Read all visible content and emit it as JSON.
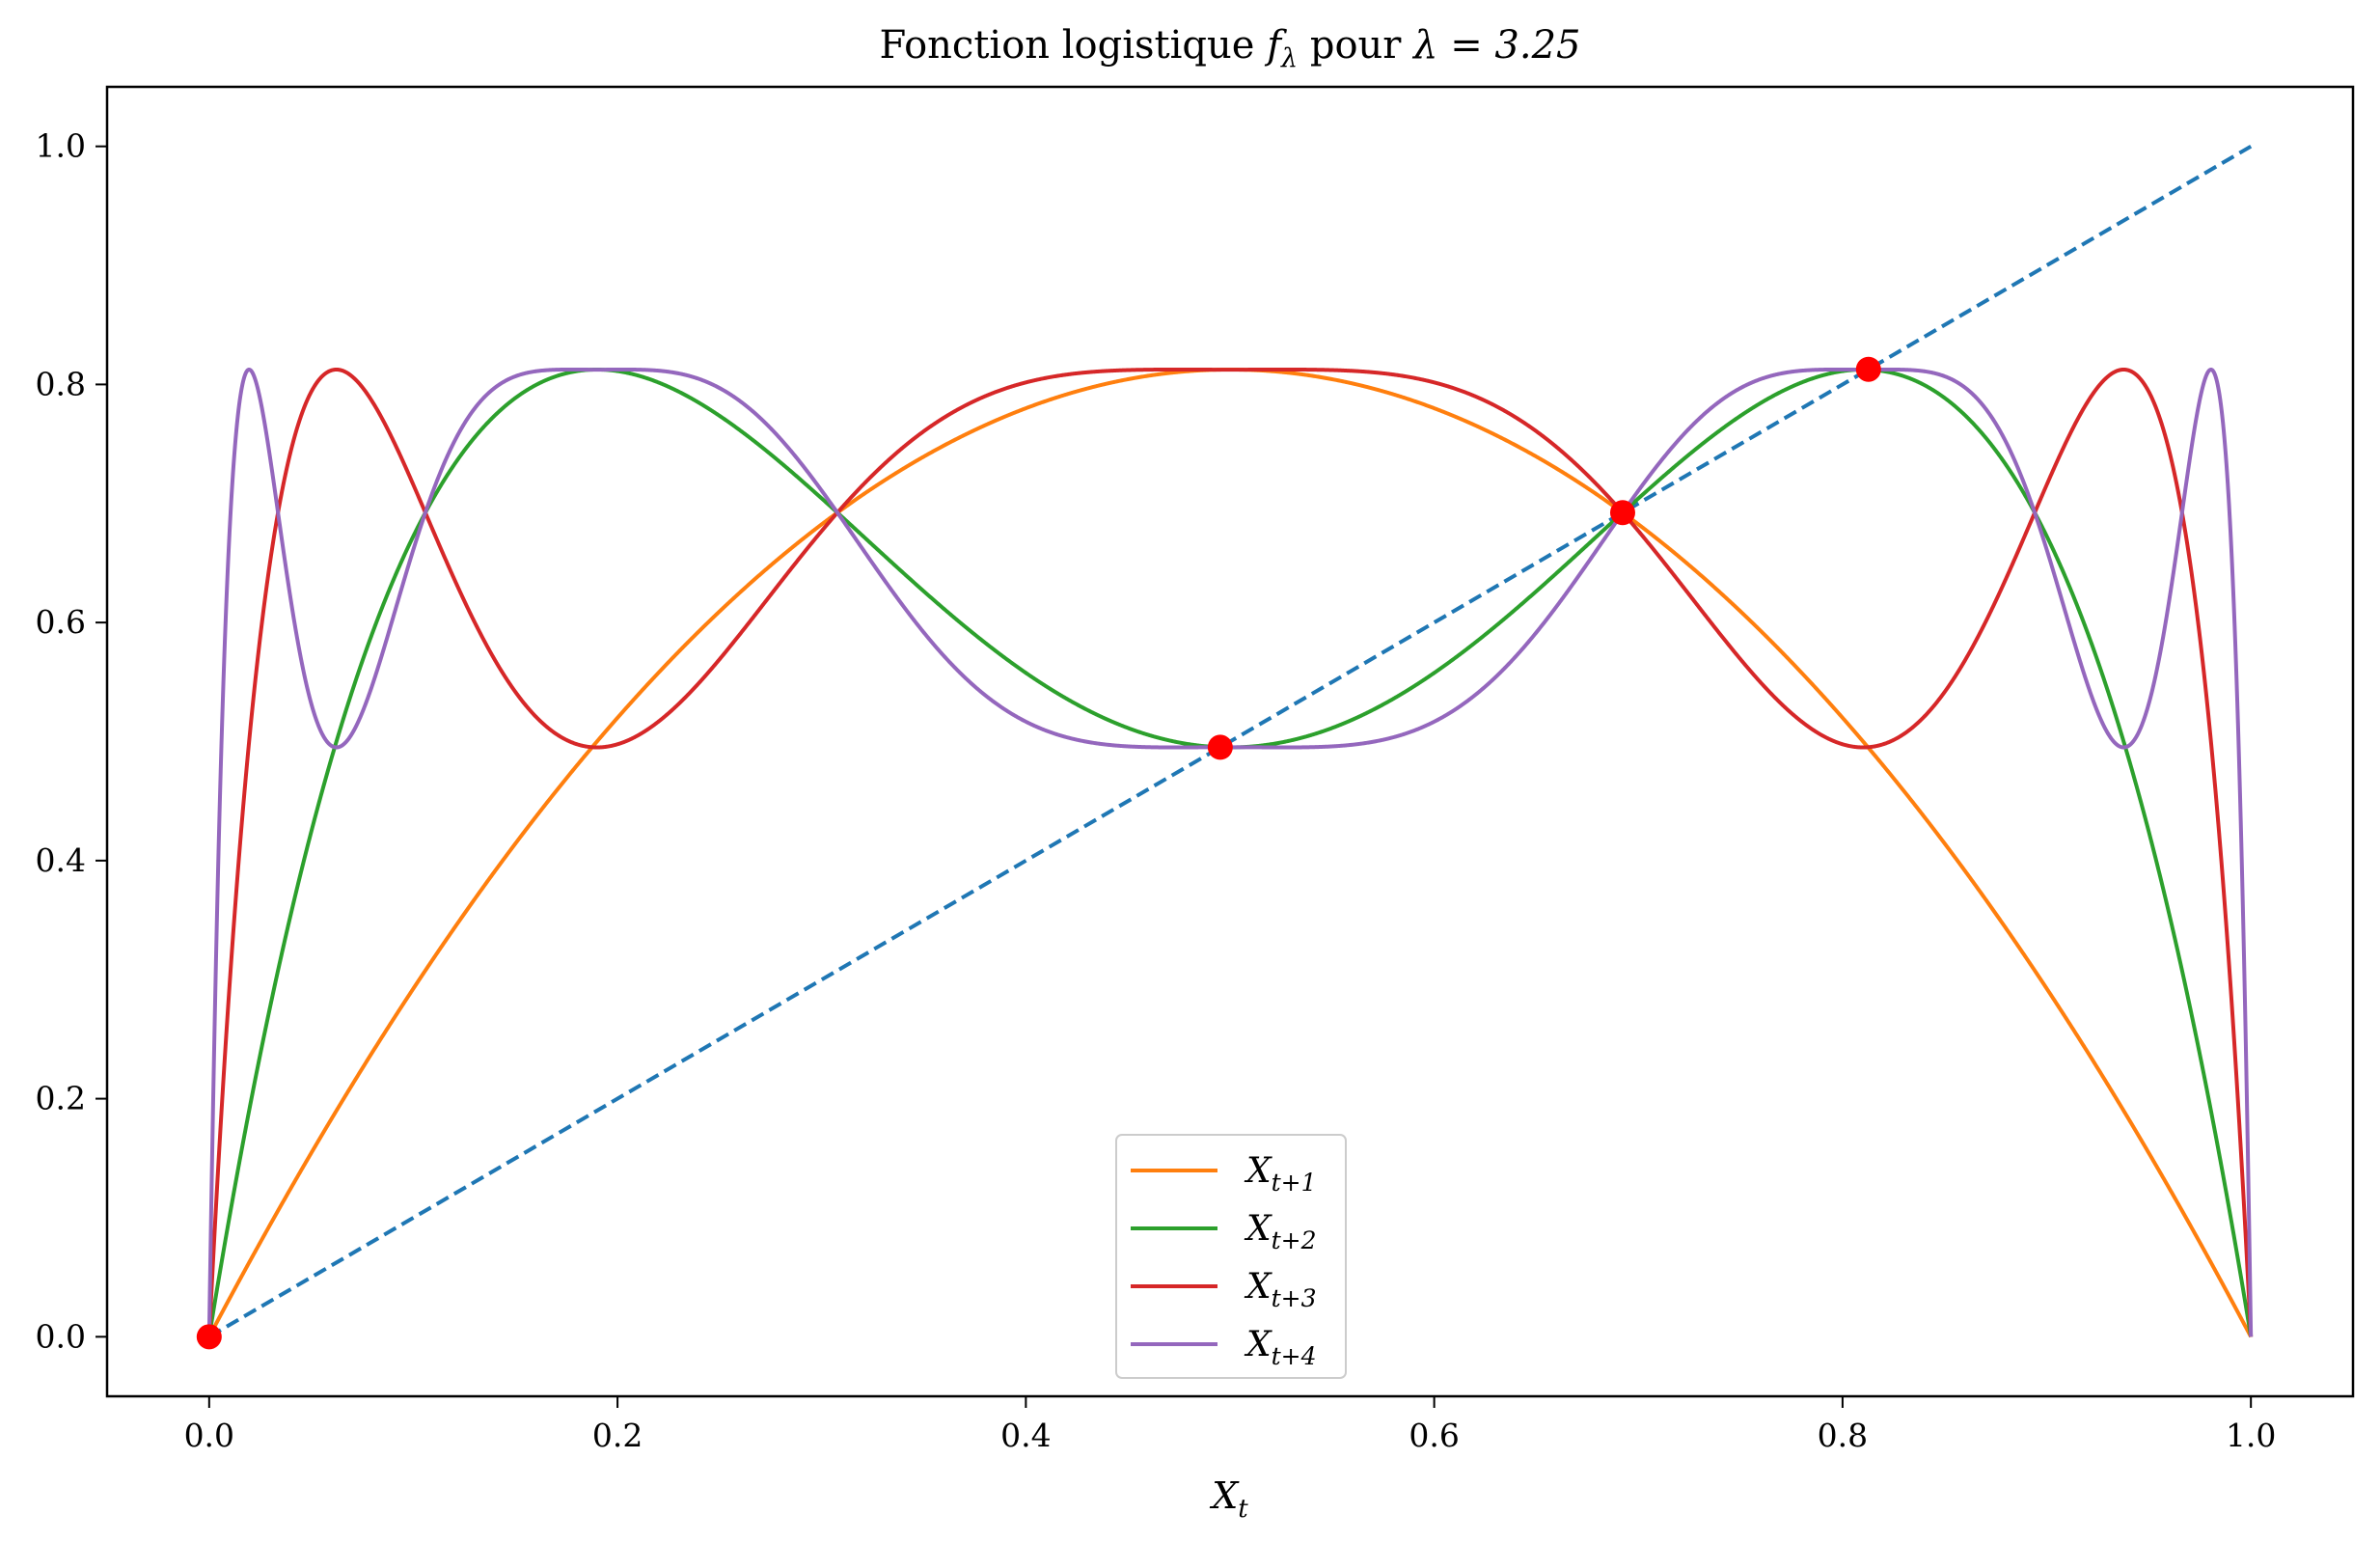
{
  "chart_data": {
    "type": "line",
    "title": "Fonction logistique f_λ pour λ = 3.25",
    "title_parts": {
      "prefix": "Fonction logistique ",
      "func": "f",
      "func_sub": "λ",
      "mid": " pour ",
      "eq": "λ = 3.25"
    },
    "xlabel": "X",
    "xlabel_sub": "t",
    "ylabel": "",
    "lambda": 3.25,
    "xlim": [
      -0.05,
      1.05
    ],
    "ylim": [
      -0.05,
      1.05
    ],
    "xticks": [
      "0.0",
      "0.2",
      "0.4",
      "0.6",
      "0.8",
      "1.0"
    ],
    "yticks": [
      "0.0",
      "0.2",
      "0.4",
      "0.6",
      "0.8",
      "1.0"
    ],
    "grid": false,
    "legend_position": "bottom-center",
    "series": [
      {
        "name": "X_{t+1}",
        "label_main": "X",
        "label_sub": "t+1",
        "iterations": 1,
        "color": "#ff7f0e"
      },
      {
        "name": "X_{t+2}",
        "label_main": "X",
        "label_sub": "t+2",
        "iterations": 2,
        "color": "#2ca02c"
      },
      {
        "name": "X_{t+3}",
        "label_main": "X",
        "label_sub": "t+3",
        "iterations": 3,
        "color": "#d62728"
      },
      {
        "name": "X_{t+4}",
        "label_main": "X",
        "label_sub": "t+4",
        "iterations": 4,
        "color": "#9467bd"
      }
    ],
    "identity_line": {
      "x": [
        0,
        1
      ],
      "y": [
        0,
        1
      ],
      "style": "dashed",
      "color": "#1f77b4"
    },
    "fixed_points": {
      "x": [
        0.0,
        0.4952,
        0.6923,
        0.8127
      ],
      "y": [
        0.0,
        0.4952,
        0.6923,
        0.8127
      ],
      "color": "#ff0000"
    }
  }
}
